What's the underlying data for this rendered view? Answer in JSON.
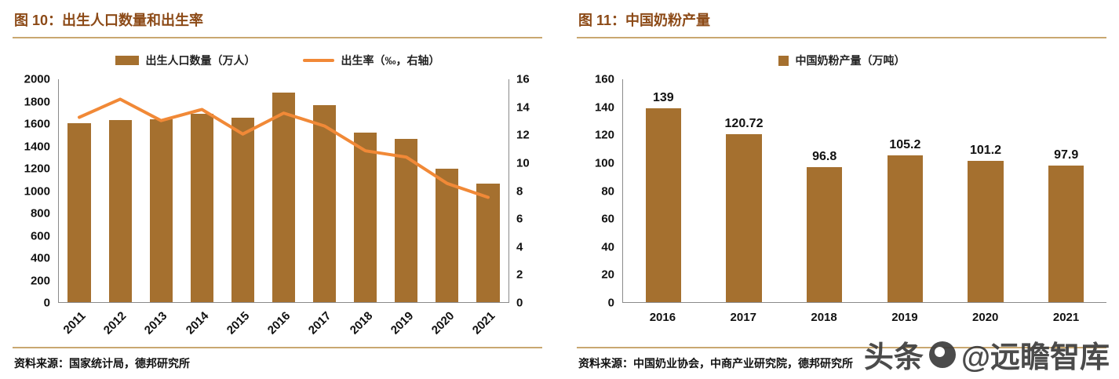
{
  "colors": {
    "bar": "#A5702F",
    "line": "#F18937",
    "title": "#8C4A17",
    "rule": "#C9A870",
    "axis": "#8A8A8A",
    "text": "#111111",
    "watermark": "#3C3C3C"
  },
  "left_panel": {
    "title": "图 10：出生人口数量和出生率",
    "legend": [
      {
        "label": "出生人口数量（万人）",
        "marker": "bar-swatch"
      },
      {
        "label": "出生率（‰，右轴）",
        "marker": "line-swatch"
      }
    ],
    "source": "资料来源：国家统计局，德邦研究所"
  },
  "right_panel": {
    "title": "图 11：中国奶粉产量",
    "legend": [
      {
        "label": "中国奶粉产量（万吨）",
        "marker": "bar-swatch"
      }
    ],
    "source": "资料来源：中国奶业协会，中商产业研究院，德邦研究所"
  },
  "watermark": {
    "prefix": "头条",
    "suffix": "@远瞻智库",
    "logo": "yuanzhan-logo-icon"
  },
  "chart_data": [
    {
      "type": "bar+line",
      "title": "出生人口数量和出生率",
      "categories": [
        "2011",
        "2012",
        "2013",
        "2014",
        "2015",
        "2016",
        "2017",
        "2018",
        "2019",
        "2020",
        "2021"
      ],
      "series": [
        {
          "name": "出生人口数量（万人）",
          "type": "bar",
          "axis": "left",
          "values": [
            1604,
            1635,
            1640,
            1687,
            1655,
            1883,
            1765,
            1523,
            1465,
            1200,
            1062
          ]
        },
        {
          "name": "出生率（‰，右轴）",
          "type": "line",
          "axis": "right",
          "values": [
            13.27,
            14.57,
            13.03,
            13.83,
            12.07,
            13.57,
            12.64,
            10.86,
            10.41,
            8.52,
            7.52
          ]
        }
      ],
      "left_axis": {
        "min": 0,
        "max": 2000,
        "step": 200
      },
      "right_axis": {
        "min": 0,
        "max": 16,
        "step": 2
      },
      "grid": false,
      "legend_position": "top"
    },
    {
      "type": "bar",
      "title": "中国奶粉产量",
      "categories": [
        "2016",
        "2017",
        "2018",
        "2019",
        "2020",
        "2021"
      ],
      "values": [
        139,
        120.72,
        96.8,
        105.2,
        101.2,
        97.9
      ],
      "data_labels": [
        "139",
        "120.72",
        "96.8",
        "105.2",
        "101.2",
        "97.9"
      ],
      "ylim": [
        0,
        160
      ],
      "step": 20,
      "grid": false,
      "legend_position": "top"
    }
  ]
}
